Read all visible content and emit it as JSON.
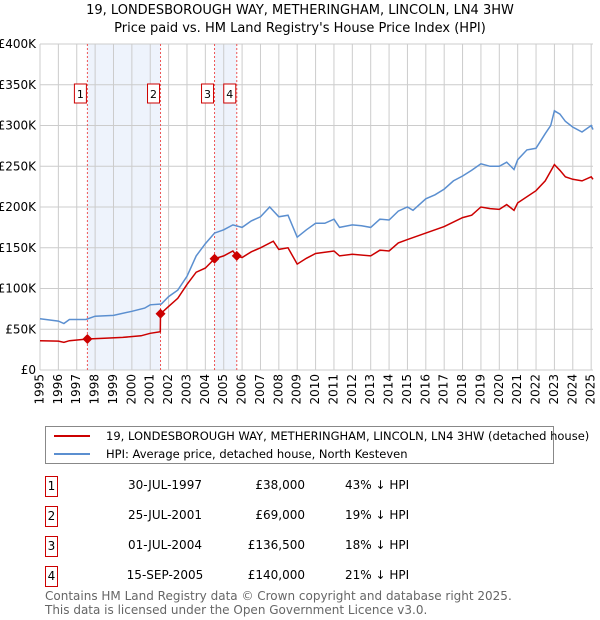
{
  "chart_data": {
    "type": "line",
    "title": "19, LONDESBOROUGH WAY, METHERINGHAM, LINCOLN, LN4 3HW",
    "subtitle": "Price paid vs. HM Land Registry's House Price Index (HPI)",
    "xlabel": "",
    "ylabel": "",
    "xlim": [
      1995,
      2025.1
    ],
    "ylim": [
      0,
      400000
    ],
    "grid": true,
    "x_ticks": [
      "1995",
      "1996",
      "1997",
      "1998",
      "1999",
      "2000",
      "2001",
      "2002",
      "2003",
      "2004",
      "2005",
      "2006",
      "2007",
      "2008",
      "2009",
      "2010",
      "2011",
      "2012",
      "2013",
      "2014",
      "2015",
      "2016",
      "2017",
      "2018",
      "2019",
      "2020",
      "2021",
      "2022",
      "2023",
      "2024",
      "2025"
    ],
    "y_ticks": [
      {
        "v": 0,
        "label": "£0"
      },
      {
        "v": 50000,
        "label": "£50K"
      },
      {
        "v": 100000,
        "label": "£100K"
      },
      {
        "v": 150000,
        "label": "£150K"
      },
      {
        "v": 200000,
        "label": "£200K"
      },
      {
        "v": 250000,
        "label": "£250K"
      },
      {
        "v": 300000,
        "label": "£300K"
      },
      {
        "v": 350000,
        "label": "£350K"
      },
      {
        "v": 400000,
        "label": "£400K"
      }
    ],
    "series": [
      {
        "name": "19, LONDESBOROUGH WAY, METHERINGHAM, LINCOLN, LN4 3HW (detached house)",
        "color": "#cc0000",
        "x": [
          1995,
          1996,
          1996.3,
          1996.6,
          1997.58,
          1998.5,
          1999.5,
          2000.5,
          2001.0,
          2001.55,
          2001.56,
          2002,
          2002.5,
          2003,
          2003.5,
          2004,
          2004.5,
          2005,
          2005.5,
          2005.7,
          2006,
          2006.5,
          2007,
          2007.7,
          2008,
          2008.5,
          2009,
          2009.5,
          2010,
          2011,
          2011.3,
          2012,
          2013,
          2013.5,
          2014,
          2014.5,
          2015,
          2016,
          2017,
          2018,
          2018.5,
          2019,
          2019.5,
          2020,
          2020.4,
          2020.8,
          2021,
          2022,
          2022.5,
          2023,
          2023.3,
          2023.6,
          2024,
          2024.5,
          2025,
          2025.1
        ],
        "y": [
          36000,
          35500,
          34000,
          36000,
          38000,
          39000,
          40000,
          42000,
          45000,
          47000,
          69000,
          78000,
          88000,
          105000,
          120000,
          125000,
          136500,
          140000,
          146000,
          140000,
          138000,
          145000,
          150000,
          158000,
          148000,
          150000,
          130000,
          137000,
          143000,
          146000,
          140000,
          142000,
          140000,
          147000,
          146000,
          156000,
          160000,
          168000,
          176000,
          187000,
          190000,
          200000,
          198000,
          197000,
          203000,
          196000,
          205000,
          220000,
          232000,
          252000,
          245000,
          237000,
          234000,
          232000,
          237000,
          234000
        ]
      },
      {
        "name": "HPI: Average price, detached house, North Kesteven",
        "color": "#5b8fd0",
        "x": [
          1995,
          1996,
          1996.3,
          1996.6,
          1997.5,
          1998,
          1999,
          2000,
          2000.7,
          2001,
          2001.6,
          2002,
          2002.5,
          2003,
          2003.5,
          2004,
          2004.5,
          2005,
          2005.5,
          2006,
          2006.5,
          2007,
          2007.5,
          2008,
          2008.5,
          2009,
          2009.5,
          2010,
          2010.5,
          2011,
          2011.3,
          2012,
          2012.5,
          2013,
          2013.5,
          2014,
          2014.5,
          2015,
          2015.3,
          2016,
          2016.5,
          2017,
          2017.5,
          2018,
          2018.5,
          2019,
          2019.5,
          2020,
          2020.4,
          2020.8,
          2021,
          2021.5,
          2022,
          2022.5,
          2022.8,
          2023,
          2023.3,
          2023.6,
          2024,
          2024.5,
          2025,
          2025.1
        ],
        "y": [
          63000,
          60000,
          57000,
          62000,
          62000,
          66000,
          67000,
          72000,
          76000,
          80000,
          81000,
          90000,
          98000,
          115000,
          140000,
          155000,
          168000,
          172000,
          178000,
          175000,
          183000,
          188000,
          200000,
          188000,
          190000,
          163000,
          172000,
          180000,
          180000,
          185000,
          175000,
          178000,
          177000,
          175000,
          185000,
          184000,
          195000,
          200000,
          196000,
          210000,
          215000,
          222000,
          232000,
          238000,
          245000,
          253000,
          250000,
          250000,
          255000,
          246000,
          258000,
          270000,
          272000,
          290000,
          300000,
          318000,
          314000,
          305000,
          298000,
          292000,
          300000,
          295000
        ]
      }
    ],
    "sales": [
      {
        "label": "1",
        "x": 1997.58,
        "price": 38000,
        "date": "30-JUL-1997",
        "price_text": "£38,000",
        "hpi_text": "43% ↓ HPI"
      },
      {
        "label": "2",
        "x": 2001.56,
        "price": 69000,
        "date": "25-JUL-2001",
        "price_text": "£69,000",
        "hpi_text": "19% ↓ HPI"
      },
      {
        "label": "3",
        "x": 2004.5,
        "price": 136500,
        "date": "01-JUL-2004",
        "price_text": "£136,500",
        "hpi_text": "18% ↓ HPI"
      },
      {
        "label": "4",
        "x": 2005.71,
        "price": 140000,
        "date": "15-SEP-2005",
        "price_text": "£140,000",
        "hpi_text": "21% ↓ HPI"
      }
    ],
    "shaded_ranges": [
      [
        1997.58,
        2001.56
      ],
      [
        2004.5,
        2005.71
      ]
    ],
    "legend_placement": "below"
  },
  "footer": {
    "line1": "Contains HM Land Registry data © Crown copyright and database right 2025.",
    "line2": "This data is licensed under the Open Government Licence v3.0."
  }
}
